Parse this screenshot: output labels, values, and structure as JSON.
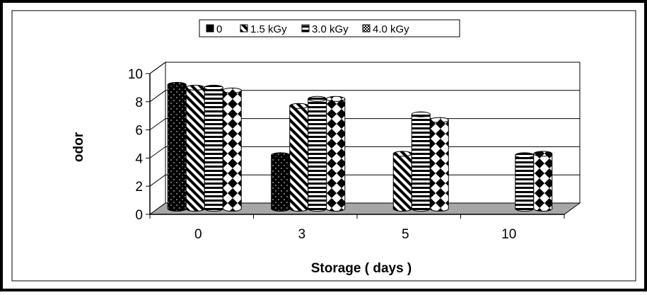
{
  "chart_data": {
    "type": "bar",
    "title": "",
    "xlabel": "Storage ( days )",
    "ylabel": "odor",
    "ylim": [
      0,
      10
    ],
    "yticks": [
      0,
      2,
      4,
      6,
      8,
      10
    ],
    "categories": [
      "0",
      "3",
      "5",
      "10"
    ],
    "legend_position": "top-center",
    "grid": true,
    "series": [
      {
        "name": "0",
        "pattern": "dots-dark",
        "values": [
          8.8,
          3.8,
          null,
          null
        ]
      },
      {
        "name": "1.5 kGy",
        "pattern": "diagonal-stripes",
        "values": [
          8.6,
          7.3,
          3.9,
          null
        ]
      },
      {
        "name": "3.0 kGy",
        "pattern": "horizontal-stripes",
        "values": [
          8.6,
          7.8,
          6.7,
          3.8
        ]
      },
      {
        "name": "4.0 kGy",
        "pattern": "checker",
        "values": [
          8.4,
          7.8,
          6.3,
          3.9
        ]
      }
    ]
  }
}
